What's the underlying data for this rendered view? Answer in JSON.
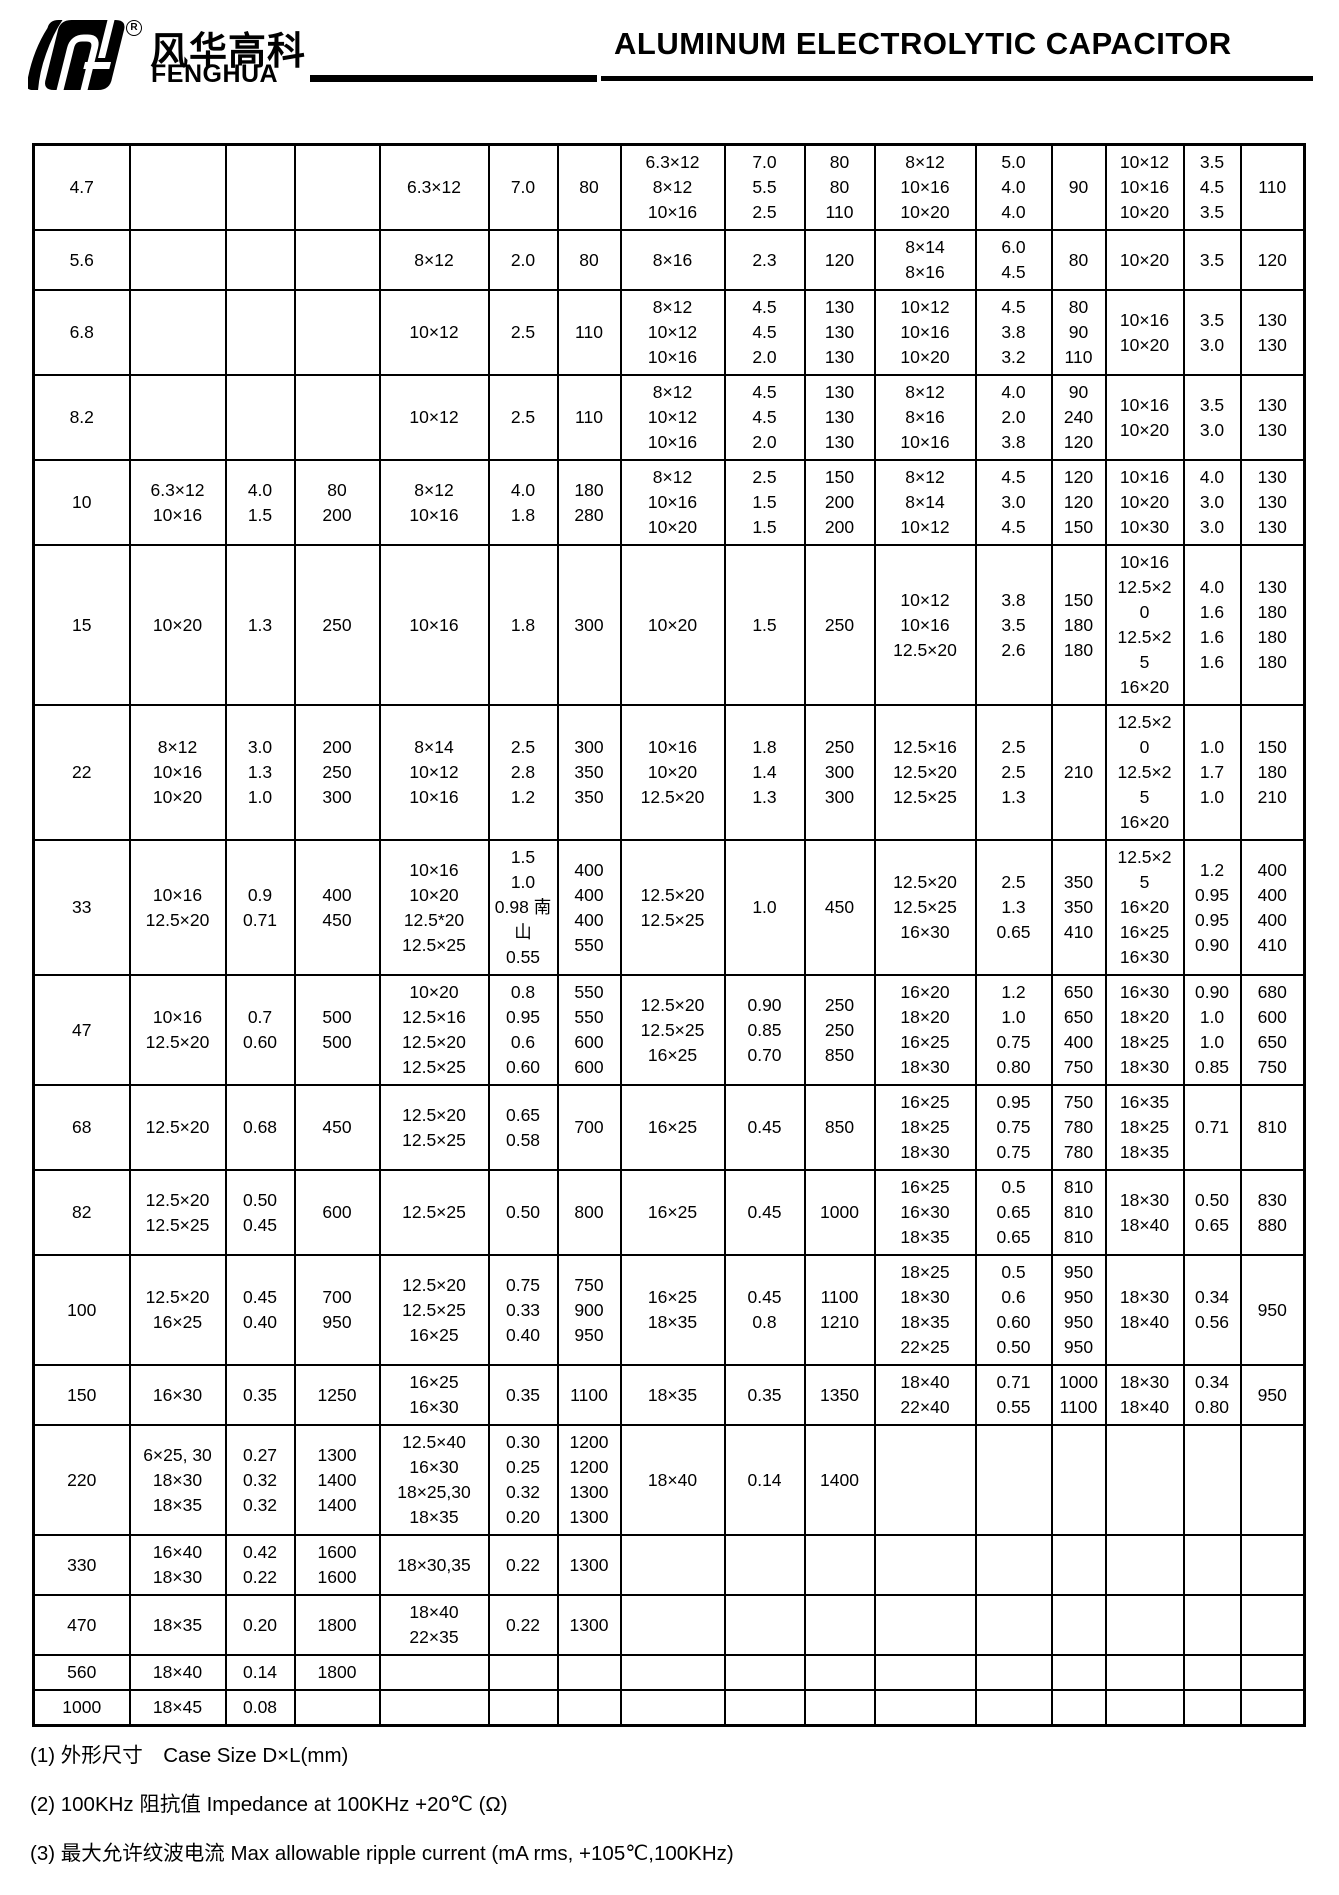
{
  "colors": {
    "ink": "#000000",
    "paper": "#ffffff"
  },
  "header": {
    "logo_cn": "风华高科",
    "logo_en": "FENGHUA",
    "registered_mark": "R",
    "title": "ALUMINUM ELECTROLYTIC CAPACITOR"
  },
  "table": {
    "rows": [
      {
        "cells": [
          [
            "4.7"
          ],
          [],
          [],
          [],
          [
            "6.3×12"
          ],
          [
            "7.0"
          ],
          [
            "80"
          ],
          [
            "6.3×12",
            "8×12",
            "10×16"
          ],
          [
            "7.0",
            "5.5",
            "2.5"
          ],
          [
            "80",
            "80",
            "110"
          ],
          [
            "8×12",
            "10×16",
            "10×20"
          ],
          [
            "5.0",
            "4.0",
            "4.0"
          ],
          [
            "90"
          ],
          [
            "10×12",
            "10×16",
            "10×20"
          ],
          [
            "3.5",
            "4.5",
            "3.5"
          ],
          [
            "110"
          ]
        ]
      },
      {
        "cells": [
          [
            "5.6"
          ],
          [],
          [],
          [],
          [
            "8×12"
          ],
          [
            "2.0"
          ],
          [
            "80"
          ],
          [
            "8×16"
          ],
          [
            "2.3"
          ],
          [
            "120"
          ],
          [
            "8×14",
            "8×16"
          ],
          [
            "6.0",
            "4.5"
          ],
          [
            "80"
          ],
          [
            "10×20"
          ],
          [
            "3.5"
          ],
          [
            "120"
          ]
        ]
      },
      {
        "cells": [
          [
            "6.8"
          ],
          [],
          [],
          [],
          [
            "10×12"
          ],
          [
            "2.5"
          ],
          [
            "110"
          ],
          [
            "8×12",
            "10×12",
            "10×16"
          ],
          [
            "4.5",
            "4.5",
            "2.0"
          ],
          [
            "130",
            "130",
            "130"
          ],
          [
            "10×12",
            "10×16",
            "10×20"
          ],
          [
            "4.5",
            "3.8",
            "3.2"
          ],
          [
            "80",
            "90",
            "110"
          ],
          [
            "10×16",
            "10×20"
          ],
          [
            "3.5",
            "3.0"
          ],
          [
            "130",
            "130"
          ]
        ]
      },
      {
        "cells": [
          [
            "8.2"
          ],
          [],
          [],
          [],
          [
            "10×12"
          ],
          [
            "2.5"
          ],
          [
            "110"
          ],
          [
            "8×12",
            "10×12",
            "10×16"
          ],
          [
            "4.5",
            "4.5",
            "2.0"
          ],
          [
            "130",
            "130",
            "130"
          ],
          [
            "8×12",
            "8×16",
            "10×16"
          ],
          [
            "4.0",
            "2.0",
            "3.8"
          ],
          [
            "90",
            "240",
            "120"
          ],
          [
            "10×16",
            "10×20"
          ],
          [
            "3.5",
            "3.0"
          ],
          [
            "130",
            "130"
          ]
        ]
      },
      {
        "cells": [
          [
            "10"
          ],
          [
            "6.3×12",
            "10×16"
          ],
          [
            "4.0",
            "1.5"
          ],
          [
            "80",
            "200"
          ],
          [
            "8×12",
            "10×16"
          ],
          [
            "4.0",
            "1.8"
          ],
          [
            "180",
            "280"
          ],
          [
            "8×12",
            "10×16",
            "10×20"
          ],
          [
            "2.5",
            "1.5",
            "1.5"
          ],
          [
            "150",
            "200",
            "200"
          ],
          [
            "8×12",
            "8×14",
            "10×12"
          ],
          [
            "4.5",
            "3.0",
            "4.5"
          ],
          [
            "120",
            "120",
            "150"
          ],
          [
            "10×16",
            "10×20",
            "10×30"
          ],
          [
            "4.0",
            "3.0",
            "3.0"
          ],
          [
            "130",
            "130",
            "130"
          ]
        ]
      },
      {
        "cells": [
          [
            "15"
          ],
          [
            "10×20"
          ],
          [
            "1.3"
          ],
          [
            "250"
          ],
          [
            "10×16"
          ],
          [
            "1.8"
          ],
          [
            "300"
          ],
          [
            "10×20"
          ],
          [
            "1.5"
          ],
          [
            "250"
          ],
          [
            "10×12",
            "10×16",
            "12.5×20"
          ],
          [
            "3.8",
            "3.5",
            "2.6"
          ],
          [
            "150",
            "180",
            "180"
          ],
          [
            "10×16",
            "12.5×2",
            "0",
            "12.5×2",
            "5",
            "16×20"
          ],
          [
            "4.0",
            "1.6",
            "1.6",
            "1.6"
          ],
          [
            "130",
            "180",
            "180",
            "180"
          ]
        ]
      },
      {
        "cells": [
          [
            "22"
          ],
          [
            "8×12",
            "10×16",
            "10×20"
          ],
          [
            "3.0",
            "1.3",
            "1.0"
          ],
          [
            "200",
            "250",
            "300"
          ],
          [
            "8×14",
            "10×12",
            "10×16"
          ],
          [
            "2.5",
            "2.8",
            "1.2"
          ],
          [
            "300",
            "350",
            "350"
          ],
          [
            "10×16",
            "10×20",
            "12.5×20"
          ],
          [
            "1.8",
            "1.4",
            "1.3"
          ],
          [
            "250",
            "300",
            "300"
          ],
          [
            "12.5×16",
            "12.5×20",
            "12.5×25"
          ],
          [
            "2.5",
            "2.5",
            "1.3"
          ],
          [
            "210"
          ],
          [
            "12.5×2",
            "0",
            "12.5×2",
            "5",
            "16×20"
          ],
          [
            "1.0",
            "1.7",
            "1.0"
          ],
          [
            "150",
            "180",
            "210"
          ]
        ]
      },
      {
        "cells": [
          [
            "33"
          ],
          [
            "10×16",
            "12.5×20"
          ],
          [
            "0.9",
            "0.71"
          ],
          [
            "400",
            "450"
          ],
          [
            "10×16",
            "10×20",
            "12.5*20",
            "12.5×25"
          ],
          [
            "1.5",
            "1.0",
            "0.98 南",
            "山",
            "0.55"
          ],
          [
            "400",
            "400",
            "400",
            "550"
          ],
          [
            "12.5×20",
            "12.5×25"
          ],
          [
            "1.0"
          ],
          [
            "450"
          ],
          [
            "12.5×20",
            "12.5×25",
            "16×30"
          ],
          [
            "2.5",
            "1.3",
            "0.65"
          ],
          [
            "350",
            "350",
            "410"
          ],
          [
            "12.5×2",
            "5",
            "16×20",
            "16×25",
            "16×30"
          ],
          [
            "1.2",
            "0.95",
            "0.95",
            "0.90"
          ],
          [
            "400",
            "400",
            "400",
            "410"
          ]
        ]
      },
      {
        "cells": [
          [
            "47"
          ],
          [
            "10×16",
            "12.5×20"
          ],
          [
            "0.7",
            "0.60"
          ],
          [
            "500",
            "500"
          ],
          [
            "10×20",
            "12.5×16",
            "12.5×20",
            "12.5×25"
          ],
          [
            "0.8",
            "0.95",
            "0.6",
            "0.60"
          ],
          [
            "550",
            "550",
            "600",
            "600"
          ],
          [
            "12.5×20",
            "12.5×25",
            "16×25"
          ],
          [
            "0.90",
            "0.85",
            "0.70"
          ],
          [
            "250",
            "250",
            "850"
          ],
          [
            "16×20",
            "18×20",
            "16×25",
            "18×30"
          ],
          [
            "1.2",
            "1.0",
            "0.75",
            "0.80"
          ],
          [
            "650",
            "650",
            "400",
            "750"
          ],
          [
            "16×30",
            "18×20",
            "18×25",
            "18×30"
          ],
          [
            "0.90",
            "1.0",
            "1.0",
            "0.85"
          ],
          [
            "680",
            "600",
            "650",
            "750"
          ]
        ]
      },
      {
        "cells": [
          [
            "68"
          ],
          [
            "12.5×20"
          ],
          [
            "0.68"
          ],
          [
            "450"
          ],
          [
            "12.5×20",
            "12.5×25"
          ],
          [
            "0.65",
            "0.58"
          ],
          [
            "700"
          ],
          [
            "16×25"
          ],
          [
            "0.45"
          ],
          [
            "850"
          ],
          [
            "16×25",
            "18×25",
            "18×30"
          ],
          [
            "0.95",
            "0.75",
            "0.75"
          ],
          [
            "750",
            "780",
            "780"
          ],
          [
            "16×35",
            "18×25",
            "18×35"
          ],
          [
            "0.71"
          ],
          [
            "810"
          ]
        ]
      },
      {
        "cells": [
          [
            "82"
          ],
          [
            "12.5×20",
            "12.5×25"
          ],
          [
            "0.50",
            "0.45"
          ],
          [
            "600"
          ],
          [
            "12.5×25"
          ],
          [
            "0.50"
          ],
          [
            "800"
          ],
          [
            "16×25"
          ],
          [
            "0.45"
          ],
          [
            "1000"
          ],
          [
            "16×25",
            "16×30",
            "18×35"
          ],
          [
            "0.5",
            "0.65",
            "0.65"
          ],
          [
            "810",
            "810",
            "810"
          ],
          [
            "18×30",
            "18×40"
          ],
          [
            "0.50",
            "0.65"
          ],
          [
            "830",
            "880"
          ]
        ]
      },
      {
        "cells": [
          [
            "100"
          ],
          [
            "12.5×20",
            "16×25"
          ],
          [
            "0.45",
            "0.40"
          ],
          [
            "700",
            "950"
          ],
          [
            "12.5×20",
            "12.5×25",
            "16×25"
          ],
          [
            "0.75",
            "0.33",
            "0.40"
          ],
          [
            "750",
            "900",
            "950"
          ],
          [
            "16×25",
            "18×35"
          ],
          [
            "0.45",
            "0.8"
          ],
          [
            "1100",
            "1210"
          ],
          [
            "18×25",
            "18×30",
            "18×35",
            "22×25"
          ],
          [
            "0.5",
            "0.6",
            "0.60",
            "0.50"
          ],
          [
            "950",
            "950",
            "950",
            "950"
          ],
          [
            "18×30",
            "18×40"
          ],
          [
            "0.34",
            "0.56"
          ],
          [
            "950"
          ]
        ]
      },
      {
        "cells": [
          [
            "150"
          ],
          [
            "16×30"
          ],
          [
            "0.35"
          ],
          [
            "1250"
          ],
          [
            "16×25",
            "16×30"
          ],
          [
            "0.35"
          ],
          [
            "1100"
          ],
          [
            "18×35"
          ],
          [
            "0.35"
          ],
          [
            "1350"
          ],
          [
            "18×40",
            "22×40"
          ],
          [
            "0.71",
            "0.55"
          ],
          [
            "1000",
            "1100"
          ],
          [
            "18×30",
            "18×40"
          ],
          [
            "0.34",
            "0.80"
          ],
          [
            "950"
          ]
        ]
      },
      {
        "cells": [
          [
            "220"
          ],
          [
            "6×25, 30",
            "18×30",
            "18×35"
          ],
          [
            "0.27",
            "0.32",
            "0.32"
          ],
          [
            "1300",
            "1400",
            "1400"
          ],
          [
            "12.5×40",
            "16×30",
            "18×25,30",
            "18×35"
          ],
          [
            "0.30",
            "0.25",
            "0.32",
            "0.20"
          ],
          [
            "1200",
            "1200",
            "1300",
            "1300"
          ],
          [
            "18×40"
          ],
          [
            "0.14"
          ],
          [
            "1400"
          ],
          [],
          [],
          [],
          [],
          [],
          []
        ]
      },
      {
        "cells": [
          [
            "330"
          ],
          [
            "16×40",
            "18×30"
          ],
          [
            "0.42",
            "0.22"
          ],
          [
            "1600",
            "1600"
          ],
          [
            "18×30,35"
          ],
          [
            "0.22"
          ],
          [
            "1300"
          ],
          [],
          [],
          [],
          [],
          [],
          [],
          [],
          [],
          []
        ]
      },
      {
        "cells": [
          [
            "470"
          ],
          [
            "18×35"
          ],
          [
            "0.20"
          ],
          [
            "1800"
          ],
          [
            "18×40",
            "22×35"
          ],
          [
            "0.22"
          ],
          [
            "1300"
          ],
          [],
          [],
          [],
          [],
          [],
          [],
          [],
          [],
          []
        ]
      },
      {
        "cells": [
          [
            "560"
          ],
          [
            "18×40"
          ],
          [
            "0.14"
          ],
          [
            "1800"
          ],
          [],
          [],
          [],
          [],
          [],
          [],
          [],
          [],
          [],
          [],
          [],
          []
        ]
      },
      {
        "cells": [
          [
            "1000"
          ],
          [
            "18×45"
          ],
          [
            "0.08"
          ],
          [],
          [],
          [],
          [],
          [],
          [],
          [],
          [],
          [],
          [],
          [],
          [],
          []
        ]
      }
    ]
  },
  "notes": [
    "(1) 外形尺寸　Case Size D×L(mm)",
    "(2) 100KHz 阻抗值 Impedance at 100KHz +20℃  (Ω)",
    "(3) 最大允许纹波电流  Max allowable ripple current (mA rms, +105℃,100KHz)"
  ]
}
